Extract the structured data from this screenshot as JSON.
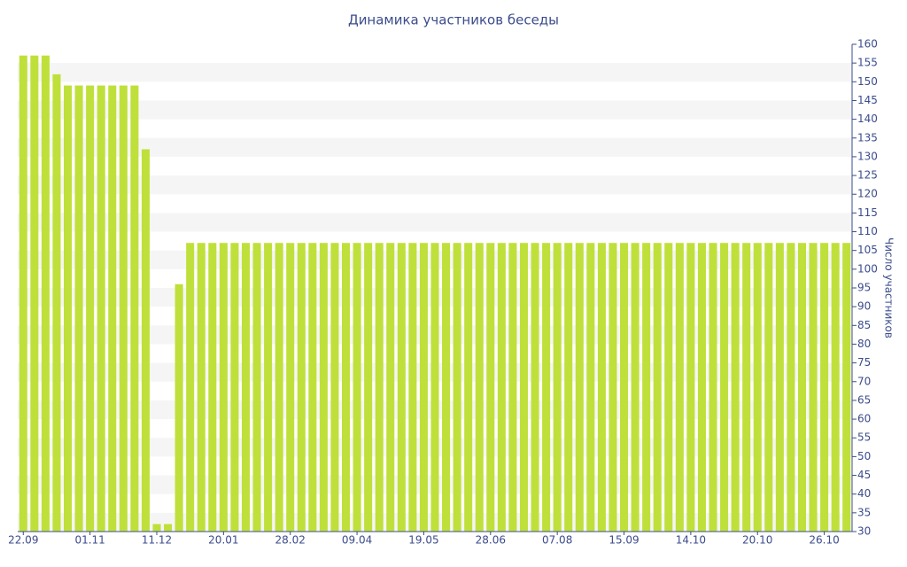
{
  "chart_data": {
    "type": "bar",
    "title": "Динамика участников беседы",
    "y_label": "Число участников",
    "categories": [
      "22.09",
      null,
      null,
      null,
      null,
      null,
      "01.11",
      null,
      null,
      null,
      null,
      null,
      "11.12",
      null,
      null,
      null,
      null,
      null,
      "20.01",
      null,
      null,
      null,
      null,
      null,
      "28.02",
      null,
      null,
      null,
      null,
      null,
      "09.04",
      null,
      null,
      null,
      null,
      null,
      "19.05",
      null,
      null,
      null,
      null,
      null,
      "28.06",
      null,
      null,
      null,
      null,
      null,
      "07.08",
      null,
      null,
      null,
      null,
      null,
      "15.09",
      null,
      null,
      null,
      null,
      null,
      "14.10",
      null,
      null,
      null,
      null,
      null,
      "20.10",
      null,
      null,
      null,
      null,
      null,
      "26.10",
      null,
      null
    ],
    "values": [
      157,
      157,
      157,
      152,
      149,
      149,
      149,
      149,
      149,
      149,
      149,
      132,
      32,
      32,
      96,
      107,
      107,
      107,
      107,
      107,
      107,
      107,
      107,
      107,
      107,
      107,
      107,
      107,
      107,
      107,
      107,
      107,
      107,
      107,
      107,
      107,
      107,
      107,
      107,
      107,
      107,
      107,
      107,
      107,
      107,
      107,
      107,
      107,
      107,
      107,
      107,
      107,
      107,
      107,
      107,
      107,
      107,
      107,
      107,
      107,
      107,
      107,
      107,
      107,
      107,
      107,
      107,
      107,
      107,
      107,
      107,
      107,
      107,
      107,
      107
    ],
    "color": "#bfe03a",
    "ylim": [
      30,
      160
    ],
    "yticks": [
      30,
      35,
      40,
      45,
      50,
      55,
      60,
      65,
      70,
      75,
      80,
      85,
      90,
      95,
      100,
      105,
      110,
      115,
      120,
      125,
      130,
      135,
      140,
      145,
      150,
      155,
      160
    ],
    "grid": true
  }
}
